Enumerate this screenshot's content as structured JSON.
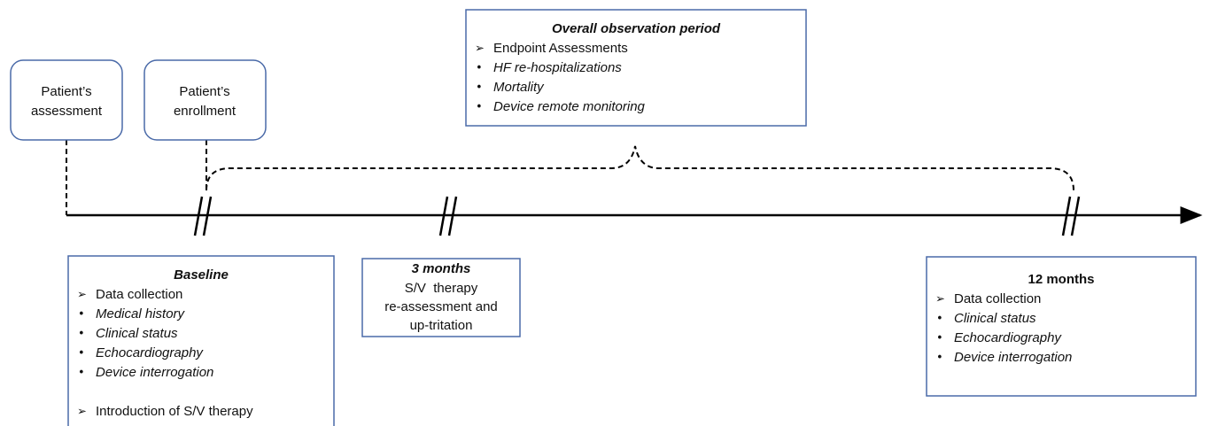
{
  "start_boxes": [
    {
      "lines": [
        "Patient’s",
        "assessment"
      ]
    },
    {
      "lines": [
        "Patient’s",
        "enrollment"
      ]
    }
  ],
  "overall": {
    "title": "Overall observation period",
    "heading": "Endpoint Assessments",
    "items": [
      "HF re-hospitalizations",
      "Mortality",
      "Device remote monitoring"
    ]
  },
  "baseline": {
    "title": "Baseline",
    "headings": [
      "Data collection",
      "Introduction of S/V therapy"
    ],
    "items": [
      "Medical history",
      "Clinical status",
      "Echocardiography",
      "Device interrogation"
    ]
  },
  "three_months": {
    "title": "3 months",
    "lines": [
      "S/V  therapy",
      "re-assessment and",
      "up-tritation"
    ]
  },
  "twelve_months": {
    "title": "12 months",
    "heading": "Data collection",
    "items": [
      "Clinical status",
      "Echocardiography",
      "Device interrogation"
    ]
  }
}
